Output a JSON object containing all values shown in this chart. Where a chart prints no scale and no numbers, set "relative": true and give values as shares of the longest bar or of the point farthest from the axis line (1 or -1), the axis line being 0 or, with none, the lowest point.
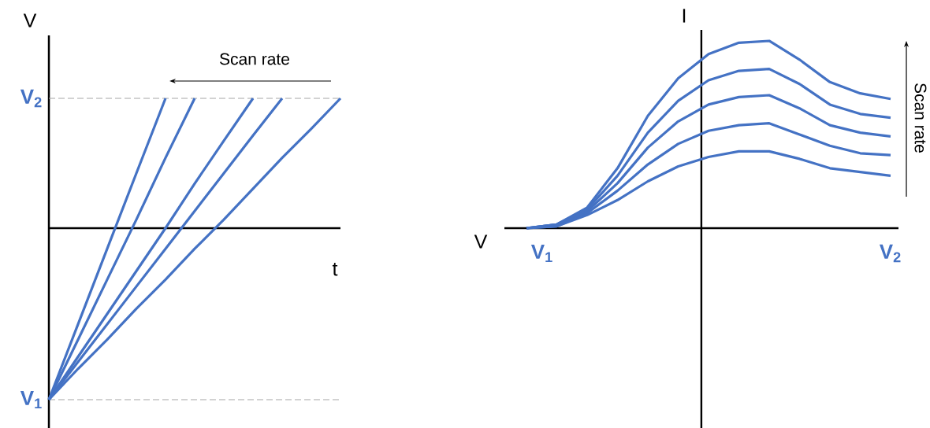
{
  "chart_data": [
    {
      "type": "line",
      "xlabel": "t",
      "ylabel": "V",
      "relative": true,
      "categories": [
        null,
        null,
        null,
        null,
        null,
        null,
        null,
        null,
        null,
        null,
        null
      ],
      "series": [
        {
          "color": "#4472c4",
          "values": [
            -1,
            -0.56,
            -0.12,
            0.32,
            0.757,
            null,
            null,
            null,
            null,
            null,
            null
          ]
        },
        {
          "color": "#4472c4",
          "values": [
            -1,
            -0.65,
            -0.3,
            0.05,
            0.41,
            0.757,
            null,
            null,
            null,
            null,
            null
          ]
        },
        {
          "color": "#4472c4",
          "values": [
            -1,
            -0.75,
            -0.5,
            -0.25,
            0.0,
            0.26,
            0.51,
            0.757,
            null,
            null,
            null
          ]
        },
        {
          "color": "#4472c4",
          "values": [
            -1,
            -0.78,
            -0.56,
            -0.34,
            -0.12,
            0.1,
            0.32,
            0.54,
            0.757,
            null,
            null
          ]
        },
        {
          "color": "#4472c4",
          "values": [
            -1,
            -0.82,
            -0.65,
            -0.47,
            -0.3,
            -0.12,
            0.05,
            0.23,
            0.41,
            0.58,
            0.757
          ]
        }
      ],
      "ref_lines": [
        {
          "axis": "y",
          "value": 0.757,
          "label": "V$_{2}$",
          "color": "#a6a6a6",
          "line_style": "dashed"
        },
        {
          "axis": "y",
          "value": -1,
          "label": "V$_{1}$",
          "color": "#a6a6a6",
          "line_style": "dashed"
        }
      ],
      "annotations": [
        "Scan rate"
      ]
    },
    {
      "type": "line",
      "xlabel": "V",
      "ylabel": "I",
      "relative": true,
      "categories": [
        null,
        null,
        null,
        null,
        null,
        null,
        null,
        null,
        null,
        null,
        null,
        null,
        null
      ],
      "series": [
        {
          "color": "#4472c4",
          "values": [
            0,
            0.02,
            0.11,
            0.32,
            0.6,
            0.8,
            0.93,
            0.99,
            1.0,
            0.9,
            0.78,
            0.72,
            0.69
          ]
        },
        {
          "color": "#4472c4",
          "values": [
            0,
            0.02,
            0.1,
            0.28,
            0.51,
            0.68,
            0.79,
            0.84,
            0.85,
            0.77,
            0.66,
            0.61,
            0.59
          ]
        },
        {
          "color": "#4472c4",
          "values": [
            0,
            0.02,
            0.09,
            0.24,
            0.43,
            0.57,
            0.66,
            0.7,
            0.71,
            0.64,
            0.55,
            0.51,
            0.49
          ]
        },
        {
          "color": "#4472c4",
          "values": [
            0,
            0.01,
            0.08,
            0.2,
            0.34,
            0.45,
            0.52,
            0.55,
            0.56,
            0.5,
            0.44,
            0.4,
            0.39
          ]
        },
        {
          "color": "#4472c4",
          "values": [
            0,
            0.01,
            0.07,
            0.15,
            0.25,
            0.33,
            0.38,
            0.41,
            0.41,
            0.37,
            0.32,
            0.3,
            0.28
          ]
        }
      ],
      "annotations": [
        "V$_{1}$",
        "V$_{2}$",
        "Scan rate"
      ]
    }
  ]
}
